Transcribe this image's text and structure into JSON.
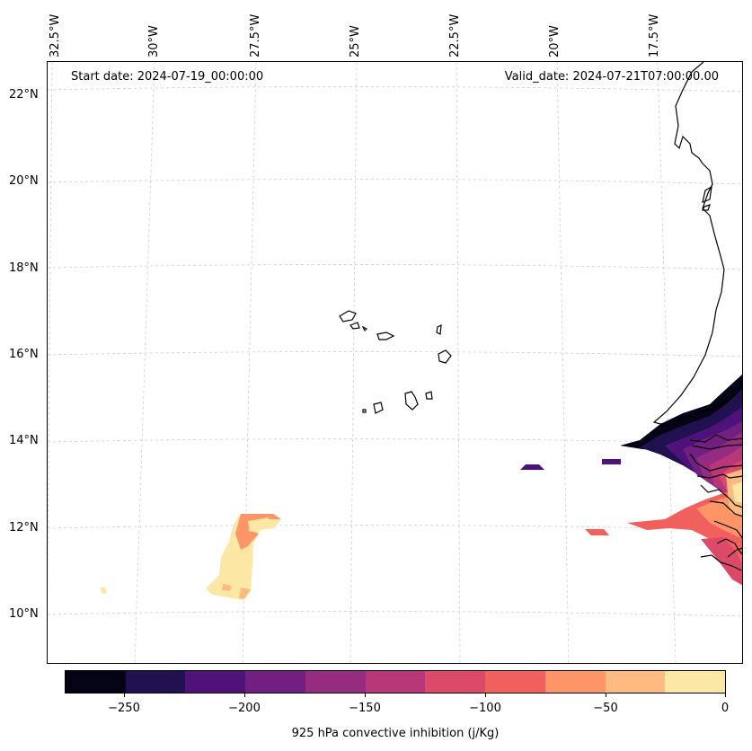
{
  "map": {
    "start_date": "Start date: 2024-07-19_00:00:00",
    "valid_date": "Valid_date: 2024-07-21T07:00:00.00",
    "lon_labels": [
      "32.5°W",
      "30°W",
      "27.5°W",
      "25°W",
      "22.5°W",
      "20°W",
      "17.5°W"
    ],
    "lat_labels": [
      "22°N",
      "20°N",
      "18°N",
      "16°N",
      "14°N",
      "12°N",
      "10°N"
    ],
    "colorbar": {
      "label": "925 hPa convective inhibition (j/Kg)",
      "ticks": [
        "−250",
        "−200",
        "−150",
        "−100",
        "−50",
        "0"
      ],
      "tick_values": [
        -250,
        -200,
        -150,
        -100,
        -50,
        0
      ],
      "range": [
        -275,
        0
      ],
      "colors": [
        "#050416",
        "#221150",
        "#4f127b",
        "#721f81",
        "#952c80",
        "#b73779",
        "#dd4a69",
        "#f1605d",
        "#fd9567",
        "#feba80",
        "#fde7a5"
      ]
    }
  }
}
